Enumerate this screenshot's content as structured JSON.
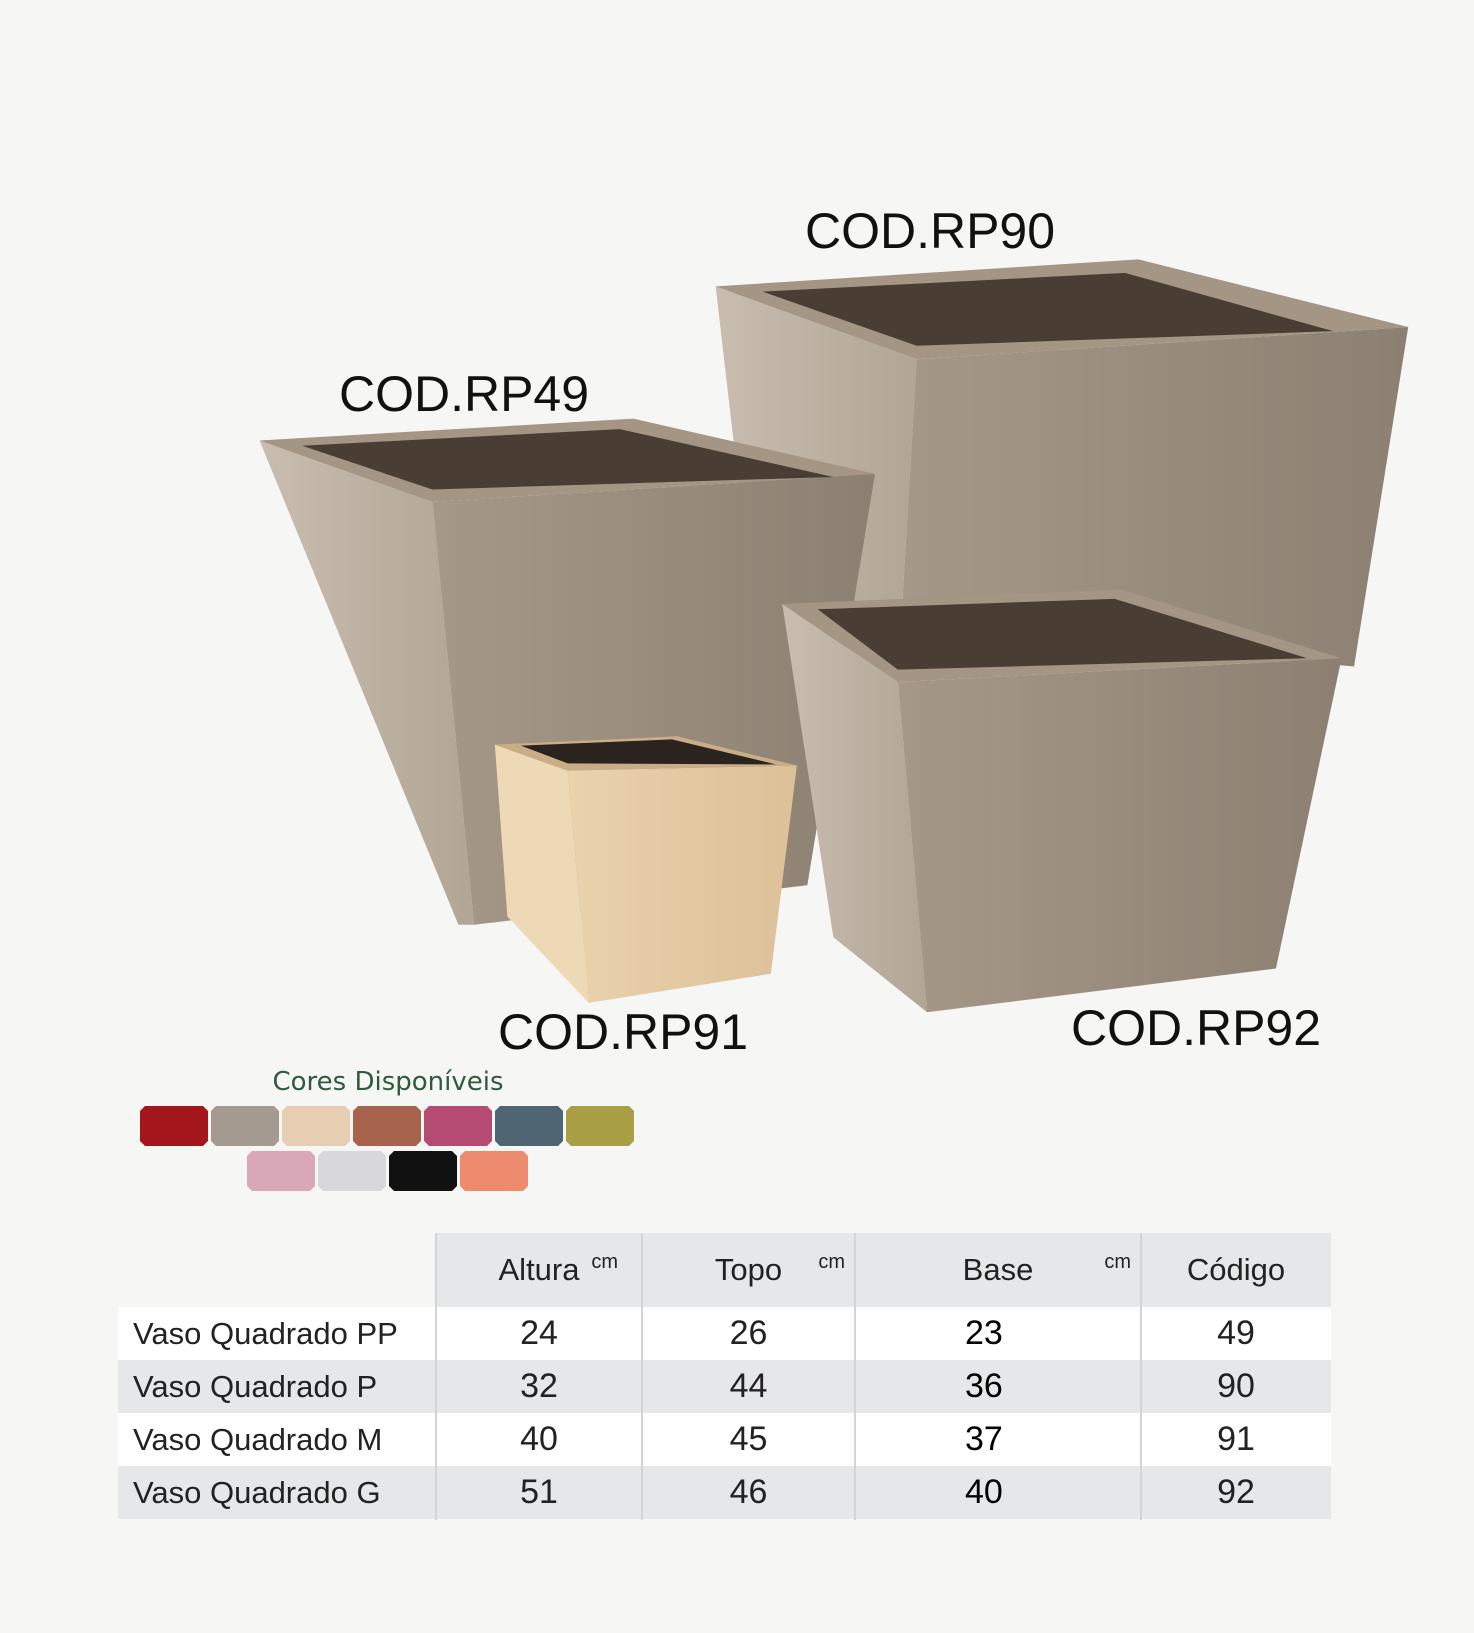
{
  "products": [
    {
      "code": "COD.RP90"
    },
    {
      "code": "COD.RP49"
    },
    {
      "code": "COD.RP91"
    },
    {
      "code": "COD.RP92"
    }
  ],
  "colors": {
    "title": "Cores Disponíveis",
    "swatches_row1": [
      "#a3161b",
      "#a59a8f",
      "#e7cdb1",
      "#a8634c",
      "#b54a73",
      "#4f6573",
      "#a9a046"
    ],
    "swatches_row2": [
      "#d9a8b8",
      "#d8d8dc",
      "#111111",
      "#ee8a6e"
    ]
  },
  "table": {
    "headers": {
      "altura": "Altura",
      "topo": "Topo",
      "base": "Base",
      "codigo": "Código",
      "unit": "cm"
    },
    "rows": [
      {
        "name": "Vaso Quadrado PP",
        "altura": "24",
        "topo": "26",
        "base": "23",
        "codigo": "49"
      },
      {
        "name": "Vaso Quadrado P",
        "altura": "32",
        "topo": "44",
        "base": "36",
        "codigo": "90"
      },
      {
        "name": "Vaso Quadrado M",
        "altura": "40",
        "topo": "45",
        "base": "37",
        "codigo": "91"
      },
      {
        "name": "Vaso Quadrado G",
        "altura": "51",
        "topo": "46",
        "base": "40",
        "codigo": "92"
      }
    ]
  }
}
